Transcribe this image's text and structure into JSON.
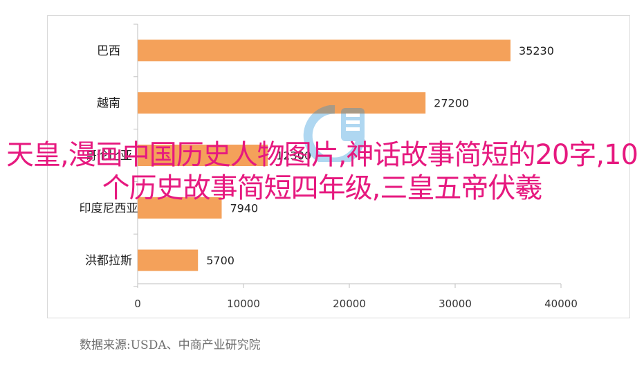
{
  "chart_data": {
    "type": "bar",
    "orientation": "horizontal",
    "categories": [
      "巴西",
      "越南",
      "哥伦比亚",
      "印度尼西亚",
      "洪都拉斯"
    ],
    "values": [
      35230,
      27200,
      12300,
      7940,
      5700
    ],
    "data_labels": [
      "35230",
      "27200",
      "12300",
      "7940",
      "5700"
    ],
    "x_ticks": [
      "0",
      "10000",
      "20000",
      "30000",
      "40000"
    ],
    "xlim": [
      0,
      40000
    ],
    "bar_color": "#f4a15a",
    "grid": false,
    "legend": "none"
  },
  "overlay_title": "天皇,漫画中国历史人物图片,神话故事简短的20字,10个历史故事简短四年级,三皇五帝伏羲",
  "source_note": "数据来源:USDA、中商产业研究院",
  "watermark": {
    "icon": "logo-watermark-icon",
    "color": "#1d8fd8"
  },
  "colors": {
    "overlay_text": "#e6197f",
    "axis": "#bfbfbf"
  }
}
